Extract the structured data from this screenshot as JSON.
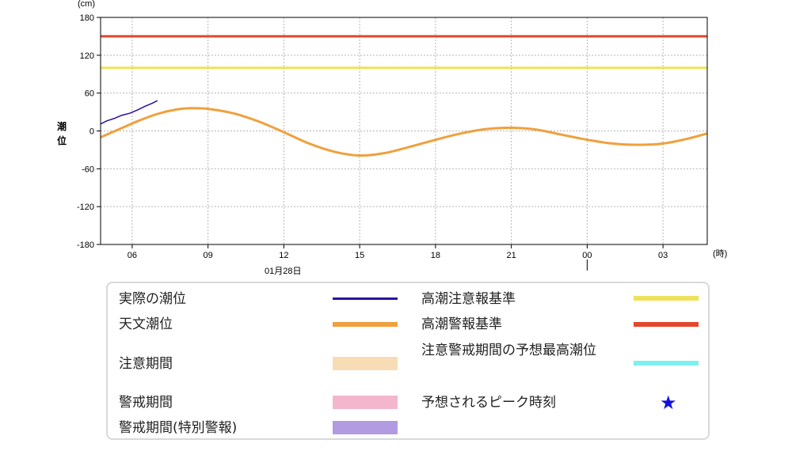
{
  "chart_data": {
    "type": "line",
    "y_unit": "(cm)",
    "ylabel": "潮位",
    "ylim": [
      -180,
      180
    ],
    "yticks": [
      -180,
      -120,
      -60,
      0,
      60,
      120,
      180
    ],
    "x_unit": "(時)",
    "x_range_hours": [
      4.75,
      28.75
    ],
    "xticks": [
      {
        "hour": 6,
        "label": "06"
      },
      {
        "hour": 9,
        "label": "09"
      },
      {
        "hour": 12,
        "label": "12"
      },
      {
        "hour": 15,
        "label": "15"
      },
      {
        "hour": 18,
        "label": "18"
      },
      {
        "hour": 21,
        "label": "21"
      },
      {
        "hour": 24,
        "label": "00"
      },
      {
        "hour": 27,
        "label": "03"
      }
    ],
    "date_label": "01月28日",
    "grid": true,
    "thresholds": [
      {
        "name": "高潮警報基準",
        "value": 150,
        "color": "#e2472c"
      },
      {
        "name": "高潮注意報基準",
        "value": 100,
        "color": "#ede25a"
      }
    ],
    "series": [
      {
        "name": "天文潮位",
        "color": "#f0a03c",
        "points": [
          [
            4.75,
            -10
          ],
          [
            5.5,
            3
          ],
          [
            6.25,
            16
          ],
          [
            7.0,
            27
          ],
          [
            7.75,
            34
          ],
          [
            8.3,
            36
          ],
          [
            9.0,
            35
          ],
          [
            10.0,
            28
          ],
          [
            11.0,
            15
          ],
          [
            12.0,
            -2
          ],
          [
            13.0,
            -20
          ],
          [
            14.0,
            -33
          ],
          [
            15.0,
            -39
          ],
          [
            16.0,
            -35
          ],
          [
            17.0,
            -25
          ],
          [
            18.0,
            -14
          ],
          [
            19.0,
            -4
          ],
          [
            20.0,
            3
          ],
          [
            21.0,
            5
          ],
          [
            22.0,
            2
          ],
          [
            23.0,
            -6
          ],
          [
            24.0,
            -14
          ],
          [
            25.0,
            -20
          ],
          [
            26.0,
            -22
          ],
          [
            27.0,
            -20
          ],
          [
            28.0,
            -12
          ],
          [
            28.75,
            -4
          ]
        ]
      },
      {
        "name": "実際の潮位",
        "color": "#2a0fa0",
        "points": [
          [
            4.75,
            11
          ],
          [
            5.0,
            16
          ],
          [
            5.3,
            20
          ],
          [
            5.6,
            25
          ],
          [
            5.9,
            28
          ],
          [
            6.2,
            33
          ],
          [
            6.5,
            39
          ],
          [
            6.8,
            44
          ],
          [
            7.0,
            48
          ]
        ]
      }
    ]
  },
  "legend": {
    "items": [
      {
        "label": "実際の潮位",
        "kind": "line",
        "color": "#2a0fa0"
      },
      {
        "label": "天文潮位",
        "kind": "thick-line",
        "color": "#f0a03c"
      },
      {
        "label": "注意期間",
        "kind": "band",
        "color": "#f8dcb6"
      },
      {
        "label": "警戒期間",
        "kind": "band",
        "color": "#f4b6cc"
      },
      {
        "label": "警戒期間(特別警報)",
        "kind": "band",
        "color": "#b29be0"
      },
      {
        "label": "高潮注意報基準",
        "kind": "thick-line",
        "color": "#ede25a"
      },
      {
        "label": "高潮警報基準",
        "kind": "thick-line",
        "color": "#e2472c"
      },
      {
        "label": "注意警戒期間の予想最高潮位",
        "kind": "thick-line",
        "color": "#7ef0f0"
      },
      {
        "label": "予想されるピーク時刻",
        "kind": "star",
        "color": "#1010e0",
        "symbol": "★"
      }
    ]
  }
}
